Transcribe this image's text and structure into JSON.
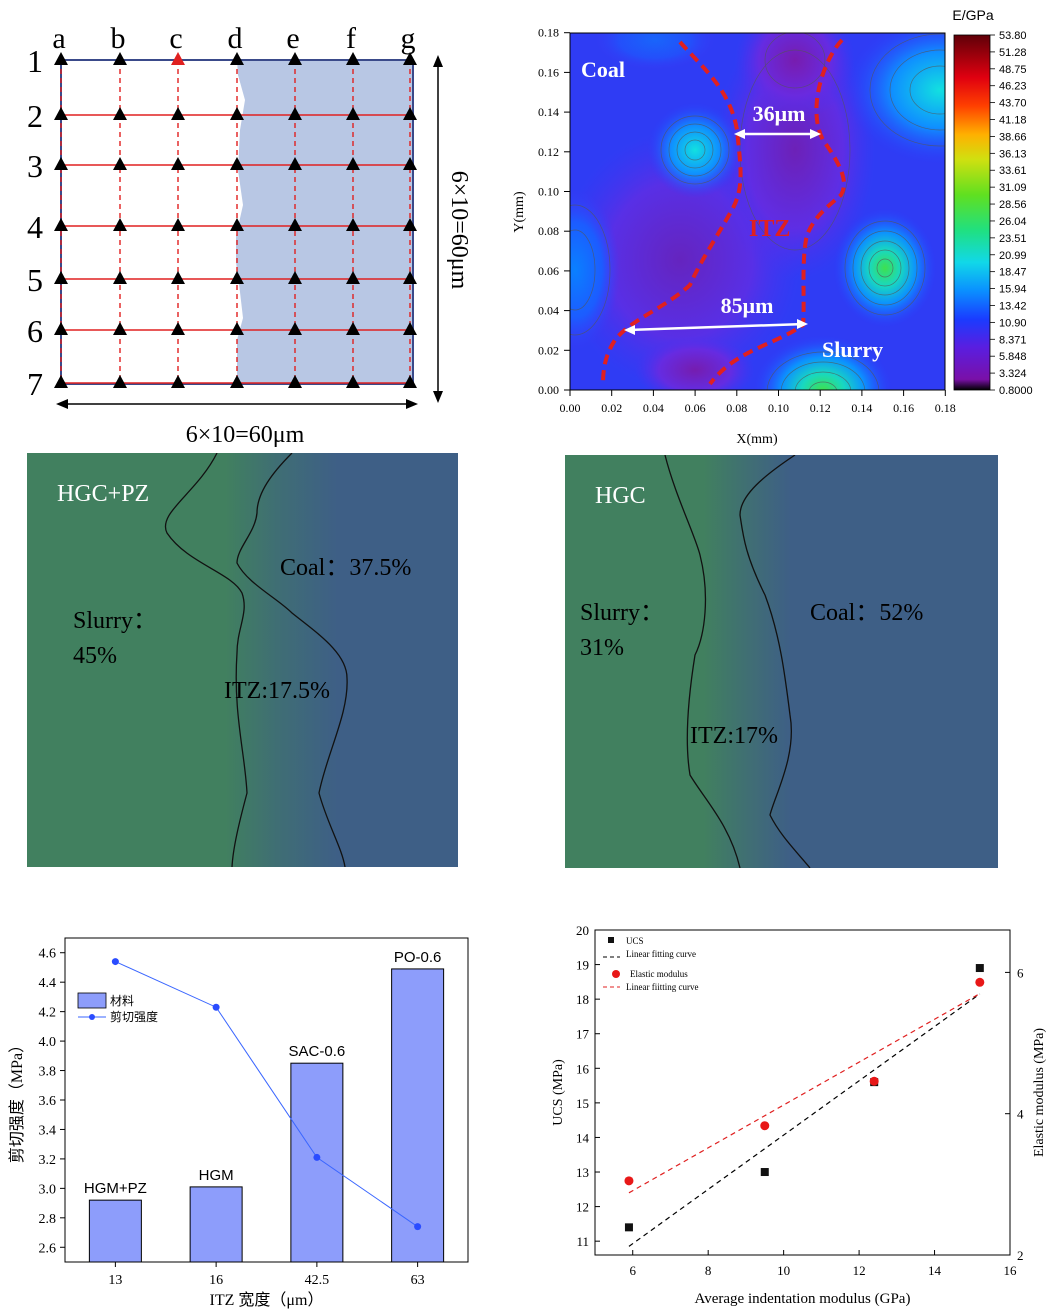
{
  "colors": {
    "grid_red": "#e02020",
    "slurry_green": "#41805f",
    "coal_blue": "#3e5f86",
    "bar_fill": "#8d9dfb",
    "shear_line": "#3a66ff",
    "itz_dash": "#e02020"
  },
  "panel_a": {
    "col_labels": [
      "a",
      "b",
      "c",
      "d",
      "e",
      "f",
      "g"
    ],
    "row_labels": [
      "1",
      "2",
      "3",
      "4",
      "5",
      "6",
      "7"
    ],
    "x_dim": "6×10=60μm",
    "y_dim": "6×10=60μm",
    "highlighted_point": {
      "col": "c",
      "row": "1"
    }
  },
  "panel_b": {
    "colorbar_title": "E/GPa",
    "colorbar_ticks": [
      "53.80",
      "51.28",
      "48.75",
      "46.23",
      "43.70",
      "41.18",
      "38.66",
      "36.13",
      "33.61",
      "31.09",
      "28.56",
      "26.04",
      "23.51",
      "20.99",
      "18.47",
      "15.94",
      "13.42",
      "10.90",
      "8.371",
      "5.848",
      "3.324",
      "0.8000"
    ],
    "xlabel": "X(mm)",
    "ylabel": "Y(mm)",
    "x_ticks": [
      "0.00",
      "0.02",
      "0.04",
      "0.06",
      "0.08",
      "0.10",
      "0.12",
      "0.14",
      "0.16",
      "0.18"
    ],
    "y_ticks": [
      "0.00",
      "0.02",
      "0.04",
      "0.06",
      "0.08",
      "0.10",
      "0.12",
      "0.14",
      "0.16",
      "0.18"
    ],
    "label_coal": "Coal",
    "label_slurry": "Slurry",
    "label_itz": "ITZ",
    "width_top": "36μm",
    "width_bottom": "85μm"
  },
  "panel_c": {
    "title": "HGC+PZ",
    "coal": "Coal：37.5%",
    "slurry_line1": "Slurry：",
    "slurry_line2": "45%",
    "itz": "ITZ:17.5%"
  },
  "panel_d": {
    "title": "HGC",
    "coal": "Coal：52%",
    "slurry_line1": "Slurry：",
    "slurry_line2": "31%",
    "itz": "ITZ:17%"
  },
  "chart_data": [
    {
      "type": "bar",
      "xlabel": "ITZ 宽度（μm）",
      "ylabel": "剪切强度（MPa）",
      "categories": [
        "13",
        "16",
        "42.5",
        "63"
      ],
      "bar_labels": [
        "HGM+PZ",
        "HGM",
        "SAC-0.6",
        "PO-0.6"
      ],
      "y_ticks": [
        "2.6",
        "2.8",
        "3.0",
        "3.2",
        "3.4",
        "3.6",
        "3.8",
        "4.0",
        "4.2",
        "4.4",
        "4.6"
      ],
      "ylim": [
        2.5,
        4.7
      ],
      "legend": [
        "材料",
        "剪切强度"
      ],
      "legend_position": "top-left",
      "series": [
        {
          "name": "材料",
          "type": "bar",
          "values": [
            2.92,
            3.01,
            3.85,
            4.49
          ]
        },
        {
          "name": "剪切强度",
          "type": "line",
          "values": [
            4.54,
            4.23,
            3.21,
            2.74
          ]
        }
      ]
    },
    {
      "type": "scatter",
      "xlabel": "Average indentation modulus (GPa)",
      "ylabel": "UCS (MPa)",
      "y2label": "Elastic modulus (MPa)",
      "xlim": [
        5,
        16
      ],
      "ylim": [
        10.6,
        20
      ],
      "y2lim": [
        2,
        6.6
      ],
      "x_ticks": [
        "6",
        "8",
        "10",
        "12",
        "14",
        "16"
      ],
      "y_ticks": [
        "11",
        "12",
        "13",
        "14",
        "15",
        "16",
        "17",
        "18",
        "19",
        "20"
      ],
      "y2_ticks": [
        "2",
        "4",
        "6"
      ],
      "legend": [
        "UCS",
        "Linear fitting curve",
        "Elastic modulus",
        "Linear fiitting curve"
      ],
      "legend_position": "top-left",
      "series": [
        {
          "name": "UCS",
          "x": [
            5.9,
            9.5,
            12.4,
            15.2
          ],
          "values": [
            11.4,
            13.0,
            15.6,
            18.9
          ]
        },
        {
          "name": "Elastic modulus",
          "x": [
            5.9,
            9.5,
            12.4,
            15.2
          ],
          "values": [
            3.05,
            3.83,
            4.46,
            5.86
          ]
        }
      ],
      "fits": [
        {
          "name": "Linear fitting curve",
          "x": [
            5.9,
            15.2
          ],
          "values": [
            10.85,
            18.15
          ]
        },
        {
          "name": "Linear fiitting curve",
          "x": [
            5.9,
            15.2
          ],
          "values": [
            2.88,
            5.7
          ]
        }
      ]
    }
  ]
}
